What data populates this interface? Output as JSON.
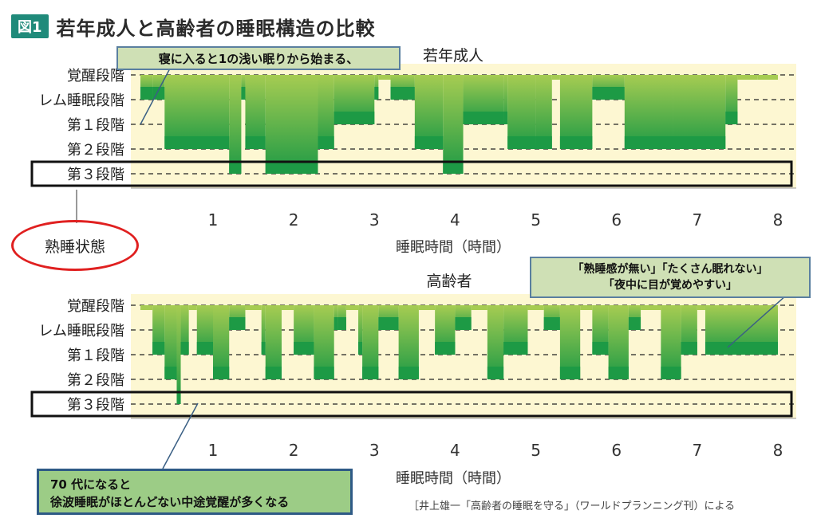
{
  "figure": {
    "badge": "図1",
    "title": "若年成人と高齢者の睡眠構造の比較"
  },
  "stage_labels": [
    "覚醒段階",
    "レム睡眠段階",
    "第１段階",
    "第２段階",
    "第３段階"
  ],
  "annotations": {
    "young_callout": "寝に入ると1の浅い眠りから始まる、",
    "deep_sleep_label": "熟睡状態",
    "elderly_callout_line1": "「熟睡感が無い」「たくさん眠れない」",
    "elderly_callout_line2": "「夜中に目が覚めやすい」",
    "bottom_note_line1": "70 代になると",
    "bottom_note_line2": "徐波睡眠がほとんどない中途覚醒が多くなる",
    "source": "［井上雄一「高齢者の睡眠を守る」（ワールドプランニング刊）による"
  },
  "colors": {
    "plot_bg": "#fdf7d2",
    "bar_light": "#a6cc52",
    "bar_dark": "#1d9a45",
    "grid": "#222222",
    "box": "#111111"
  },
  "chart_data": [
    {
      "type": "line",
      "title": "若年成人",
      "xlabel": "睡眠時間（時間）",
      "x_ticks": [
        1,
        2,
        3,
        4,
        5,
        6,
        7,
        8
      ],
      "xlim": [
        0,
        8.2
      ],
      "y_categories": [
        "覚醒段階",
        "レム睡眠段階",
        "第１段階",
        "第２段階",
        "第３段階"
      ],
      "series": [
        {
          "x": [
            0.1,
            0.25,
            0.4,
            1.2,
            1.35,
            1.4,
            1.65,
            2.3,
            2.5,
            2.75,
            3.0,
            3.05,
            3.2,
            3.5,
            3.85,
            4.1,
            4.6,
            4.65,
            5.0,
            5.2,
            5.3,
            5.7,
            6.1,
            6.7,
            7.35,
            7.5,
            7.75,
            8.0
          ],
          "y": [
            1,
            1,
            3,
            4,
            1,
            3,
            4,
            3,
            2,
            2,
            1,
            0,
            1,
            3,
            4,
            2,
            2,
            3,
            3,
            0,
            3,
            1,
            3,
            3,
            2,
            0,
            0,
            0
          ]
        }
      ]
    },
    {
      "type": "line",
      "title": "高齢者",
      "xlabel": "睡眠時間（時間）",
      "x_ticks": [
        1,
        2,
        3,
        4,
        5,
        6,
        7,
        8
      ],
      "xlim": [
        0,
        8.2
      ],
      "y_categories": [
        "覚醒段階",
        "レム睡眠段階",
        "第１段階",
        "第２段階",
        "第３段階"
      ],
      "series": [
        {
          "x": [
            0.1,
            0.25,
            0.4,
            0.55,
            0.6,
            0.7,
            0.8,
            1.0,
            1.2,
            1.4,
            1.6,
            1.65,
            1.85,
            2.0,
            2.25,
            2.5,
            2.55,
            2.65,
            2.8,
            2.85,
            3.05,
            3.3,
            3.55,
            3.75,
            4.0,
            4.2,
            4.4,
            4.6,
            4.9,
            5.1,
            5.3,
            5.55,
            5.7,
            5.9,
            6.15,
            6.3,
            6.55,
            6.8,
            7.0,
            7.1,
            8.0
          ],
          "y": [
            0,
            2,
            3,
            4,
            2,
            0,
            2,
            3,
            1,
            0,
            2,
            3,
            0,
            2,
            3,
            1,
            1,
            0,
            2,
            3,
            1,
            3,
            0,
            2,
            1,
            0,
            3,
            2,
            0,
            1,
            3,
            0,
            2,
            3,
            1,
            0,
            3,
            2,
            0,
            2,
            0
          ]
        }
      ]
    }
  ]
}
